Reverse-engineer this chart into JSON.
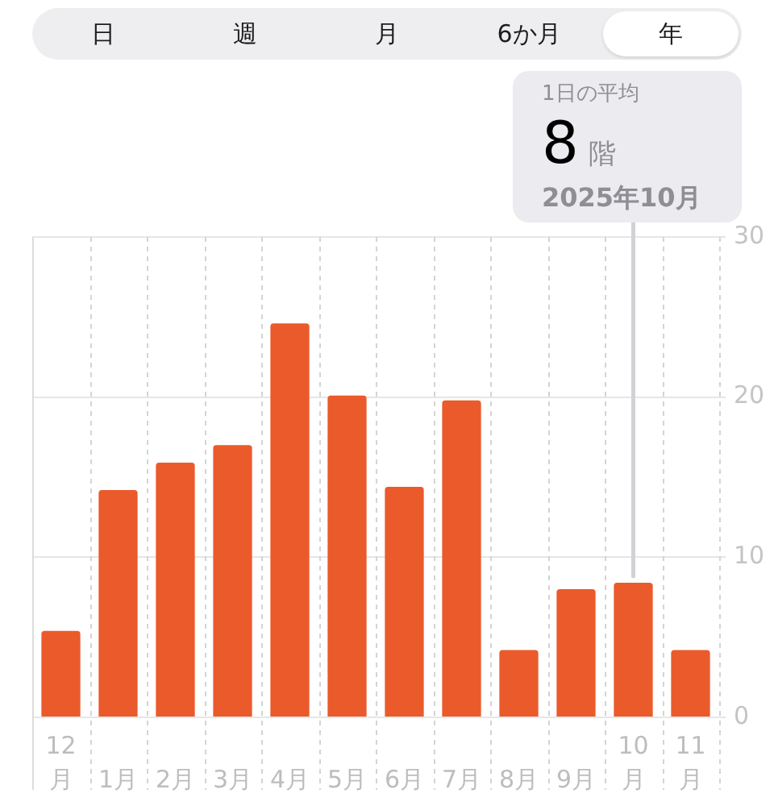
{
  "chart_data": {
    "type": "bar",
    "categories": [
      "12月",
      "1月",
      "2月",
      "3月",
      "4月",
      "5月",
      "6月",
      "7月",
      "8月",
      "9月",
      "10月",
      "11月"
    ],
    "values": [
      5.4,
      14.2,
      15.9,
      17.0,
      24.6,
      20.1,
      14.4,
      19.8,
      4.2,
      8.0,
      8.4,
      4.2
    ],
    "color": "#eb5a2b",
    "ylim": [
      0,
      30
    ],
    "yticks": [
      0,
      10,
      20,
      30
    ],
    "grid": true,
    "legend": false,
    "annotations": [
      "日",
      "週",
      "月",
      "6か月",
      "年",
      {
        "text": "1日の平均\n8 階\n2025年10月",
        "x": "10月",
        "y": 8.4
      }
    ]
  }
}
